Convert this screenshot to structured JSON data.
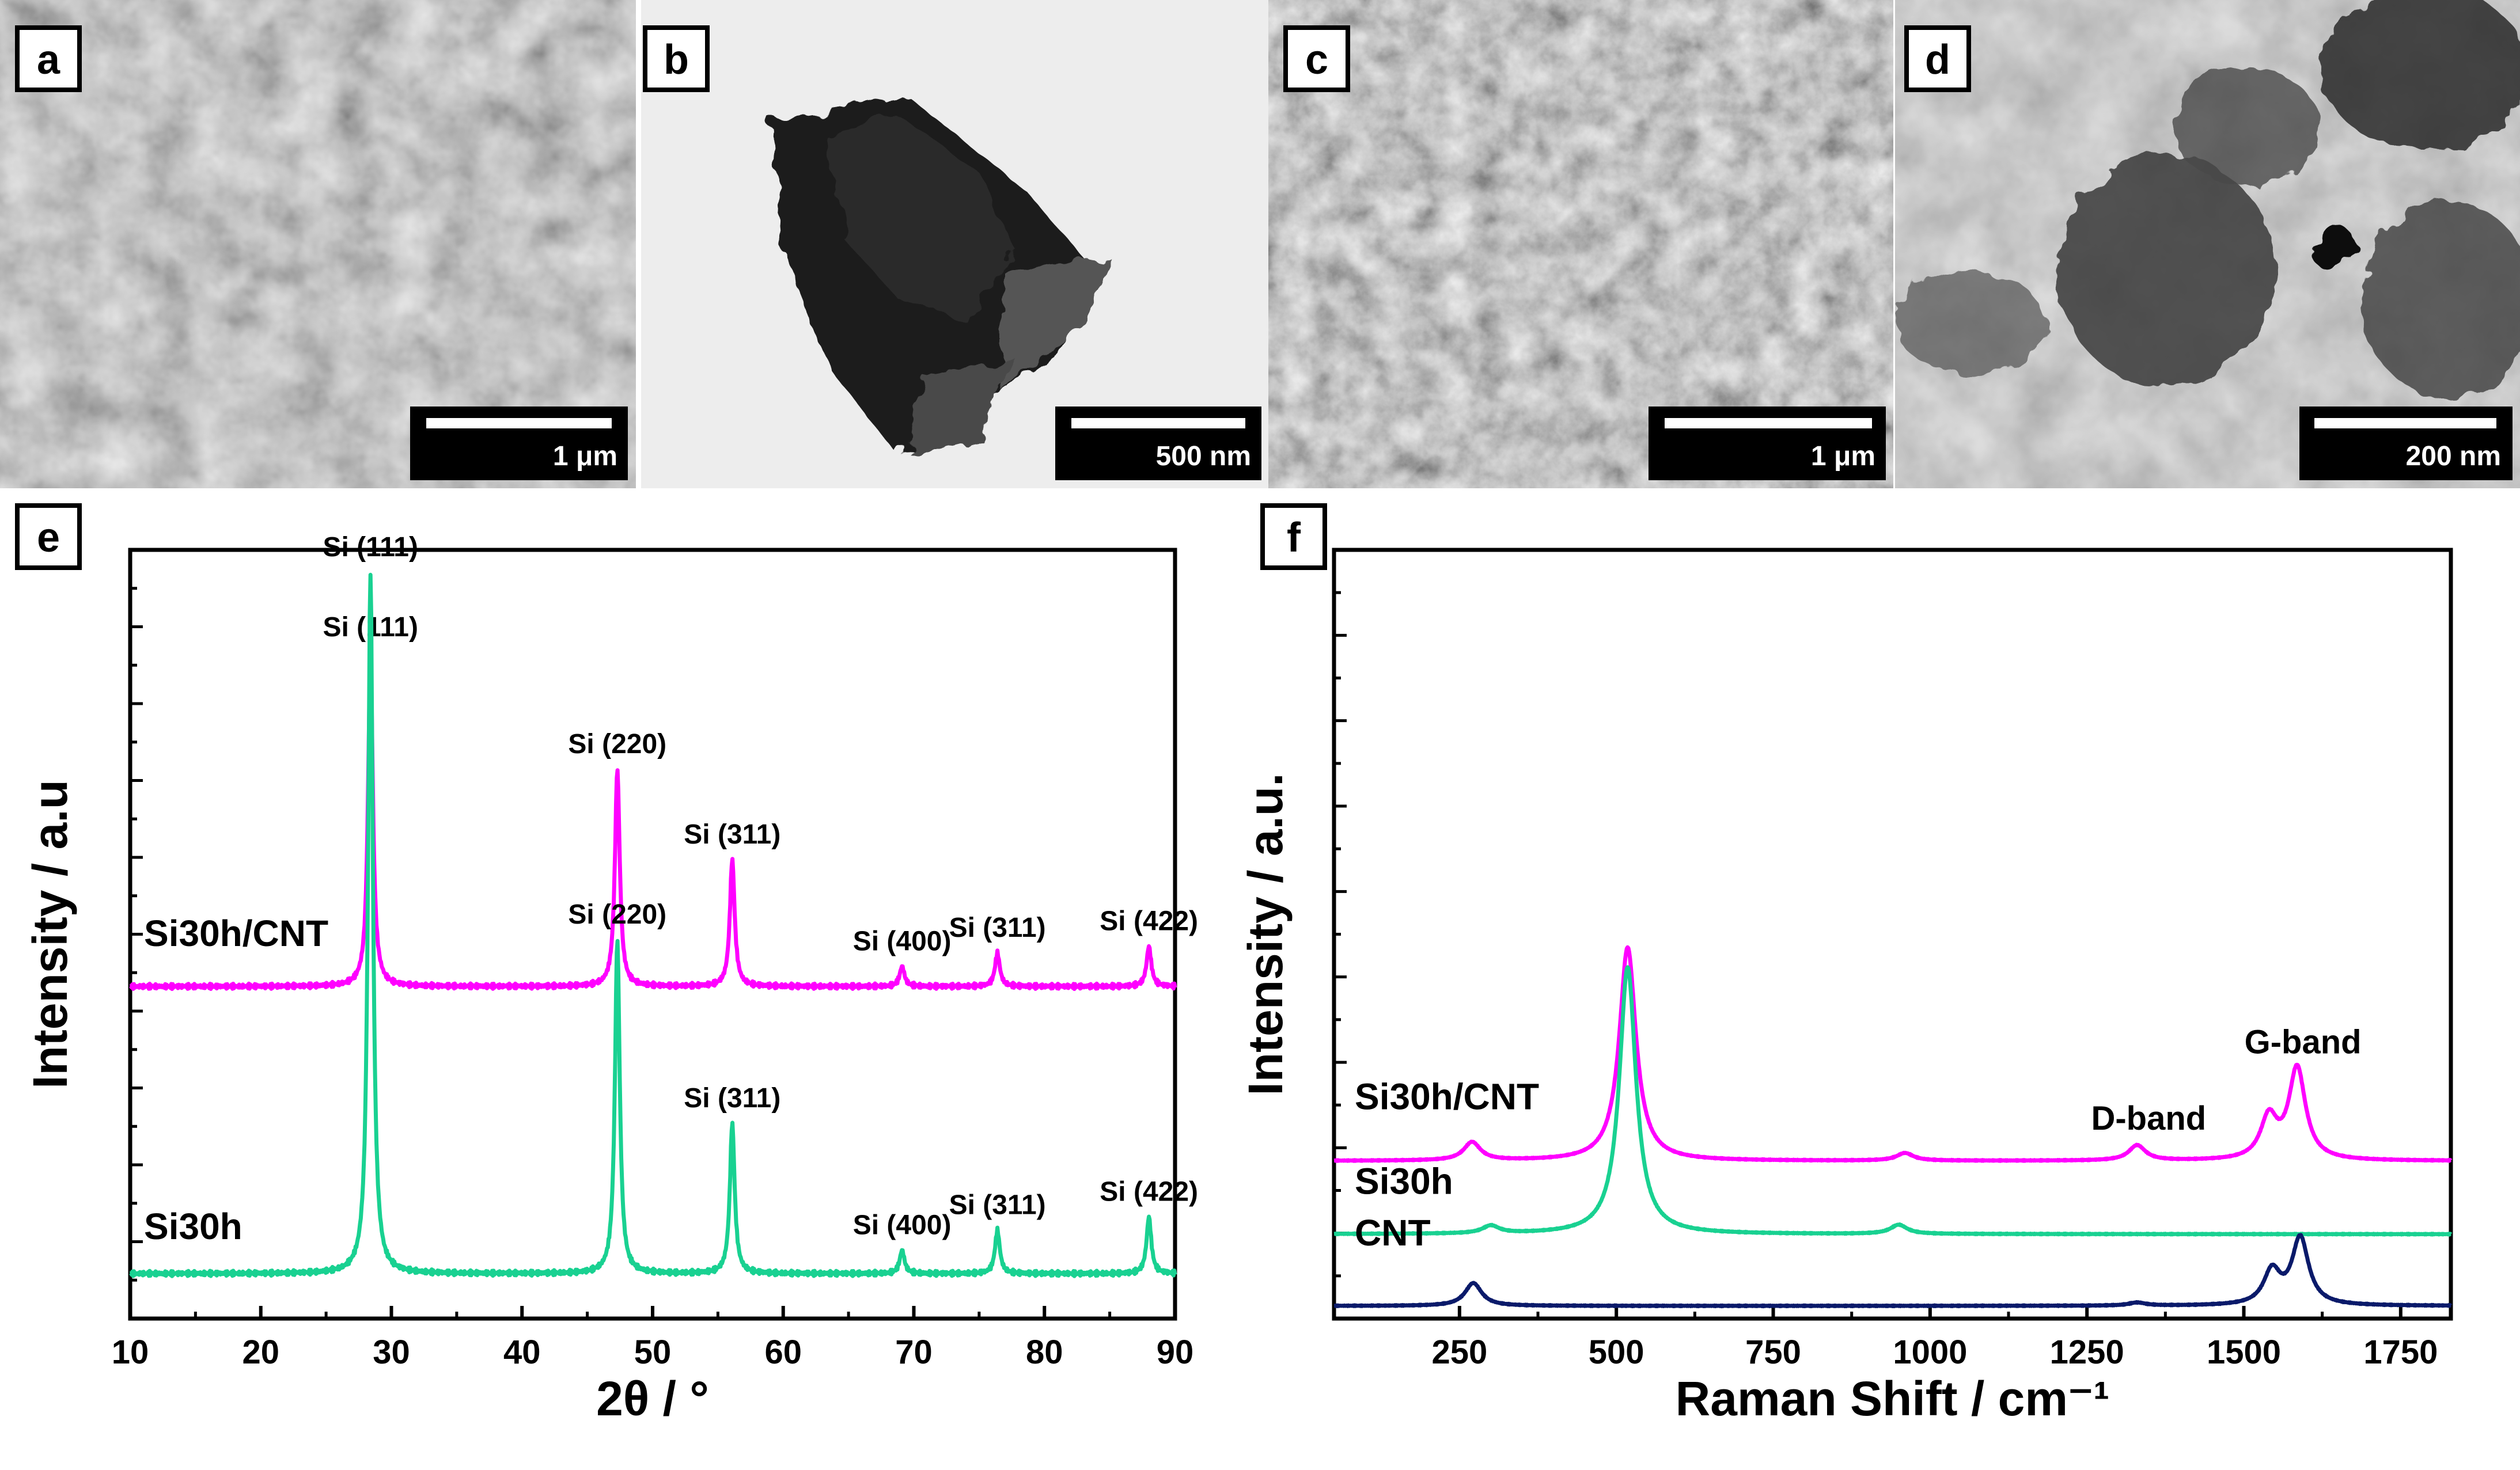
{
  "panels": {
    "a": {
      "label": "a",
      "scale_bar": "1 μm"
    },
    "b": {
      "label": "b",
      "scale_bar": "500 nm"
    },
    "c": {
      "label": "c",
      "scale_bar": "1 μm"
    },
    "d": {
      "label": "d",
      "scale_bar": "200 nm"
    },
    "e": {
      "label": "e"
    },
    "f": {
      "label": "f"
    }
  },
  "colors": {
    "magenta": "#ff00ff",
    "green": "#19d191",
    "navy": "#0a1a6a",
    "scalebar_bg": "#000000",
    "scalebar_text": "#ffffff"
  },
  "chart_data": [
    {
      "id": "e",
      "type": "line",
      "xlabel": "2θ / °",
      "ylabel": "Intensity / a.u",
      "xlim": [
        10,
        90
      ],
      "xticks": [
        10,
        20,
        30,
        40,
        50,
        60,
        70,
        80,
        90
      ],
      "y_tick_labels_shown": false,
      "series": [
        {
          "name": "Si30h/CNT",
          "color": "#ff00ff",
          "baseline": 0.86,
          "peaks": [
            {
              "x": 28.4,
              "height": 1.0,
              "label": "Si (111)"
            },
            {
              "x": 47.3,
              "height": 0.65,
              "label": "Si (220)"
            },
            {
              "x": 56.1,
              "height": 0.38,
              "label": "Si (311)"
            },
            {
              "x": 69.1,
              "height": 0.06,
              "label": "Si (400)"
            },
            {
              "x": 76.4,
              "height": 0.1,
              "label": "Si (311)"
            },
            {
              "x": 88.0,
              "height": 0.12,
              "label": "Si (422)"
            }
          ]
        },
        {
          "name": "Si30h",
          "color": "#19d191",
          "baseline": 0.0,
          "peaks": [
            {
              "x": 28.4,
              "height": 2.1,
              "label": "Si (111)"
            },
            {
              "x": 47.3,
              "height": 1.0,
              "label": "Si (220)"
            },
            {
              "x": 56.1,
              "height": 0.45,
              "label": "Si (311)"
            },
            {
              "x": 69.1,
              "height": 0.07,
              "label": "Si (400)"
            },
            {
              "x": 76.4,
              "height": 0.13,
              "label": "Si (311)"
            },
            {
              "x": 88.0,
              "height": 0.17,
              "label": "Si (422)"
            }
          ]
        }
      ]
    },
    {
      "id": "f",
      "type": "line",
      "xlabel": "Raman Shift / cm⁻¹",
      "ylabel": "Intensity / a.u.",
      "xlim": [
        50,
        1830
      ],
      "xticks": [
        250,
        500,
        750,
        1000,
        1250,
        1500,
        1750
      ],
      "y_tick_labels_shown": false,
      "annotations": [
        "D-band",
        "G-band"
      ],
      "series": [
        {
          "name": "Si30h/CNT",
          "color": "#ff00ff",
          "baseline": 0.95,
          "peaks": [
            {
              "x": 270,
              "height": 0.12
            },
            {
              "x": 518,
              "height": 1.4
            },
            {
              "x": 960,
              "height": 0.05
            },
            {
              "x": 1330,
              "height": 0.1,
              "label": "D-band"
            },
            {
              "x": 1540,
              "height": 0.27
            },
            {
              "x": 1585,
              "height": 0.6,
              "label": "G-band"
            }
          ]
        },
        {
          "name": "Si30h",
          "color": "#19d191",
          "baseline": 0.47,
          "peaks": [
            {
              "x": 300,
              "height": 0.05
            },
            {
              "x": 518,
              "height": 1.75
            },
            {
              "x": 950,
              "height": 0.06
            }
          ]
        },
        {
          "name": "CNT",
          "color": "#0a1a6a",
          "baseline": 0.0,
          "peaks": [
            {
              "x": 272,
              "height": 0.15
            },
            {
              "x": 1330,
              "height": 0.02
            },
            {
              "x": 1545,
              "height": 0.22
            },
            {
              "x": 1590,
              "height": 0.44
            }
          ]
        }
      ]
    }
  ]
}
